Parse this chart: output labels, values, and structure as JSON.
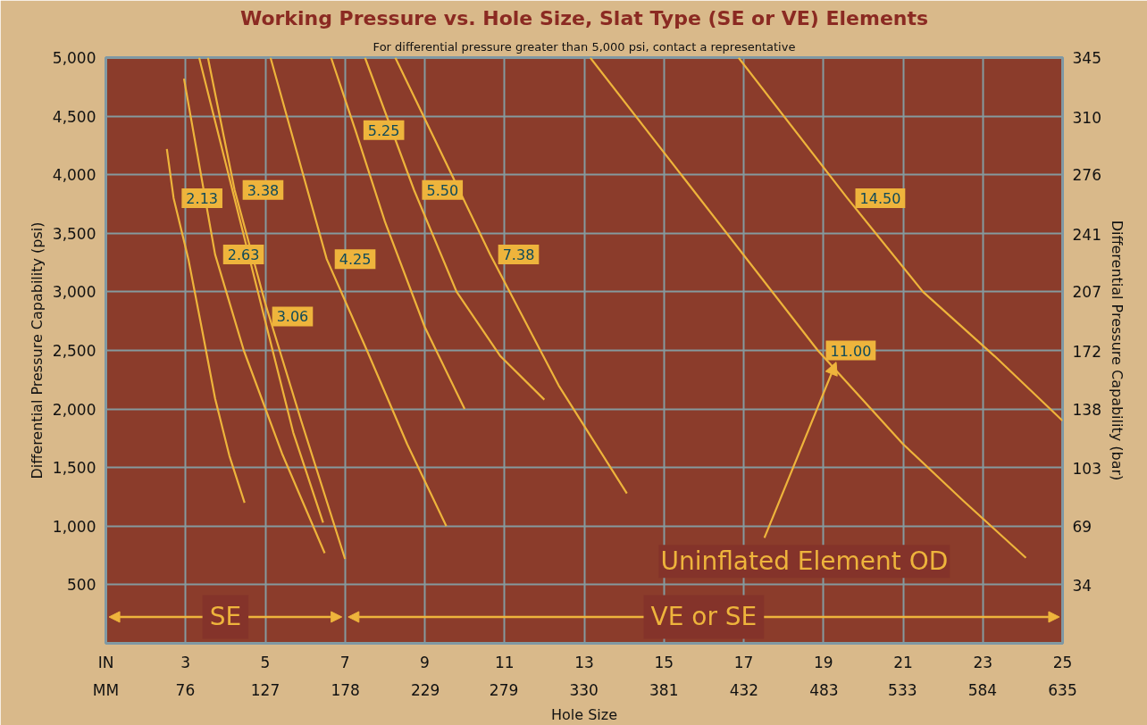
{
  "chart_data": {
    "type": "line",
    "title": "Working Pressure vs. Hole Size, Slat Type (SE or VE) Elements",
    "subtitle": "For differential pressure greater than 5,000 psi, contact a representative",
    "xlabel": "Hole Size",
    "ylabel": "Differential Pressure Capability (psi)",
    "y2label": "Differential Pressure Capability (bar)",
    "xlim": [
      1,
      25
    ],
    "xticks": [
      3,
      5,
      7,
      9,
      11,
      13,
      15,
      17,
      19,
      21,
      23,
      25
    ],
    "x2lim": [
      25.4,
      635
    ],
    "x2ticks": [
      76,
      127,
      178,
      229,
      279,
      330,
      381,
      432,
      483,
      533,
      584,
      635
    ],
    "ylim": [
      0,
      5000
    ],
    "yticks": [
      500,
      {
        "value": 1000,
        "label": "1,000"
      },
      {
        "value": 1500,
        "label": "1,500"
      },
      {
        "value": 2000,
        "label": "2,000"
      },
      {
        "value": 2500,
        "label": "2,500"
      },
      {
        "value": 3000,
        "label": "3,000"
      },
      {
        "value": 3500,
        "label": "3,500"
      },
      {
        "value": 4000,
        "label": "4,000"
      },
      {
        "value": 4500,
        "label": "4,500"
      },
      {
        "value": 5000,
        "label": "5,000"
      }
    ],
    "y2lim": [
      0,
      345
    ],
    "y2ticks": [
      34,
      69,
      103,
      138,
      172,
      207,
      241,
      276,
      310,
      345
    ],
    "grid": true,
    "marker": "none",
    "line_style": "solid",
    "series": [
      {
        "name": "2.13",
        "color": "#eeb43c",
        "x": [
          2.53,
          2.7,
          3.07,
          3.4,
          3.74,
          4.1,
          4.48
        ],
        "values": [
          4220,
          3800,
          3280,
          2700,
          2090,
          1600,
          1200
        ]
      },
      {
        "name": "2.63",
        "color": "#eeb43c",
        "x": [
          2.96,
          3.74,
          4.46,
          5.42,
          6.49
        ],
        "values": [
          4820,
          3320,
          2500,
          1620,
          770
        ]
      },
      {
        "name": "3.06",
        "color": "#eeb43c",
        "x": [
          3.34,
          4.97,
          5.7,
          6.45
        ],
        "values": [
          5000,
          2790,
          1800,
          1030
        ]
      },
      {
        "name": "3.38",
        "color": "#eeb43c",
        "x": [
          3.56,
          4.23,
          5.0,
          5.9,
          7.0
        ],
        "values": [
          5000,
          3870,
          2900,
          1900,
          720
        ]
      },
      {
        "name": "4.25",
        "color": "#eeb43c",
        "x": [
          5.13,
          6.54,
          7.55,
          8.56,
          9.54
        ],
        "values": [
          5000,
          3280,
          2500,
          1700,
          1000
        ]
      },
      {
        "name": "5.25",
        "color": "#eeb43c",
        "x": [
          6.65,
          7.26,
          8.0,
          9.0,
          10.0
        ],
        "values": [
          5000,
          4380,
          3600,
          2700,
          2000
        ]
      },
      {
        "name": "5.50",
        "color": "#eeb43c",
        "x": [
          7.5,
          8.73,
          9.8,
          10.9,
          12.0
        ],
        "values": [
          5000,
          3870,
          3000,
          2450,
          2080
        ]
      },
      {
        "name": "7.38",
        "color": "#eeb43c",
        "x": [
          8.26,
          10.64,
          12.36,
          14.07
        ],
        "values": [
          5000,
          3320,
          2200,
          1280
        ]
      },
      {
        "name": "11.00",
        "color": "#eeb43c",
        "x": [
          13.15,
          18.86,
          21.0,
          22.5,
          24.08
        ],
        "values": [
          5000,
          2500,
          1700,
          1220,
          730
        ]
      },
      {
        "name": "14.50",
        "color": "#eeb43c",
        "x": [
          16.87,
          19.6,
          21.5,
          23.3,
          25.0
        ],
        "values": [
          5000,
          3800,
          3000,
          2450,
          1900
        ]
      }
    ],
    "bands": [
      {
        "axis": "x",
        "from": 1,
        "to": 7,
        "label": "SE",
        "color": "#eeb43c"
      },
      {
        "axis": "x",
        "from": 7,
        "to": 25,
        "label": "VE or SE",
        "color": "#eeb43c"
      }
    ],
    "annotations": [
      "IN",
      "MM",
      "Uninflated Element OD"
    ]
  }
}
